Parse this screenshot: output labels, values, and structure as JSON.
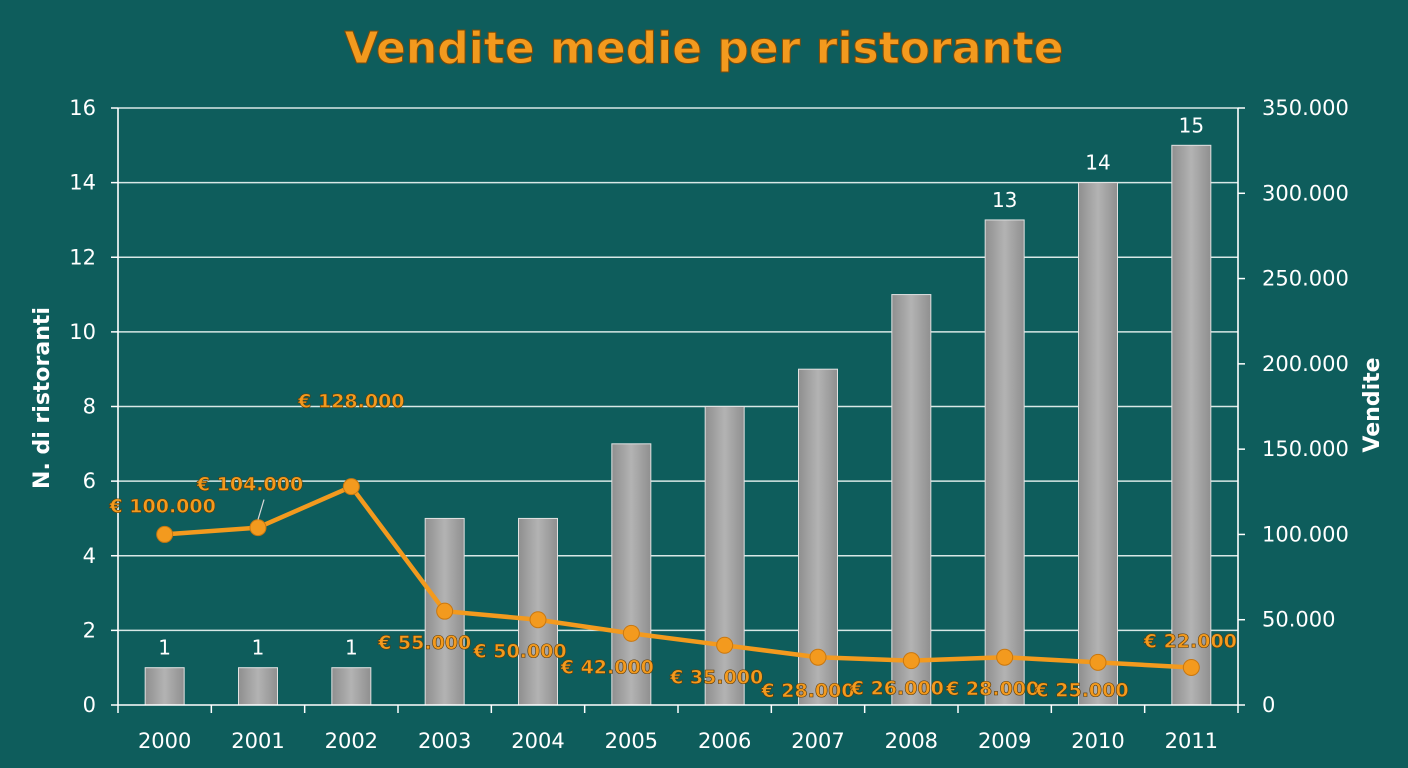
{
  "chart_data": {
    "type": "bar",
    "title": "Vendite medie per ristorante",
    "categories": [
      "2000",
      "2001",
      "2002",
      "2003",
      "2004",
      "2005",
      "2006",
      "2007",
      "2008",
      "2009",
      "2010",
      "2011"
    ],
    "series": [
      {
        "type": "bar",
        "axis": "left",
        "values": [
          1,
          1,
          1,
          5,
          5,
          7,
          8,
          9,
          11,
          13,
          14,
          15
        ],
        "data_labels": [
          "1",
          "1",
          "1",
          "",
          "",
          "",
          "",
          "",
          "",
          "13",
          "14",
          "15"
        ],
        "color": "#a3a3a3"
      },
      {
        "type": "line",
        "axis": "right",
        "values": [
          100000,
          104000,
          128000,
          55000,
          50000,
          42000,
          35000,
          28000,
          26000,
          28000,
          25000,
          22000
        ],
        "data_labels": [
          "€ 100.000",
          "€ 104.000",
          "€ 128.000",
          "€ 55.000",
          "€ 50.000",
          "€ 42.000",
          "€ 35.000",
          "€ 28.000",
          "€ 26.000",
          "€ 28.000",
          "€ 25.000",
          "€ 22.000"
        ],
        "color": "#f39a1e"
      }
    ],
    "ylabel": "N. di ristoranti",
    "ylim": [
      0,
      16
    ],
    "yticks": [
      "0",
      "2",
      "4",
      "6",
      "8",
      "10",
      "12",
      "14",
      "16"
    ],
    "y2label": "Vendite",
    "y2lim": [
      0,
      350000
    ],
    "y2ticks": [
      "0",
      "50.000",
      "100.000",
      "150.000",
      "200.000",
      "250.000",
      "300.000",
      "350.000"
    ],
    "grid": true,
    "legend": "none",
    "colors": {
      "background": "#0e5d5c",
      "grid": "#d8e8e6",
      "title": "#f39a1e",
      "text": "#ffffff"
    }
  }
}
